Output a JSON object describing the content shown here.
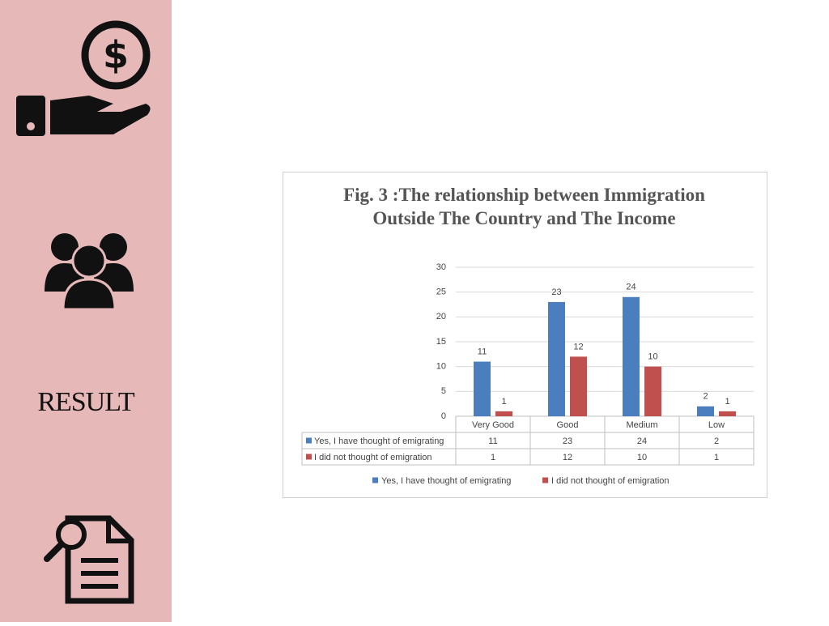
{
  "sidebar": {
    "label": "RESULT"
  },
  "chart_data": {
    "type": "bar",
    "title": "Fig. 3 :The relationship between Immigration Outside The Country and The Income",
    "categories": [
      "Very Good",
      "Good",
      "Medium",
      "Low"
    ],
    "series": [
      {
        "name": "Yes, I have thought of emigrating",
        "color": "#4a7ebf",
        "values": [
          11,
          23,
          24,
          2
        ]
      },
      {
        "name": "I did not thought of emigration",
        "color": "#c0504d",
        "values": [
          1,
          12,
          10,
          1
        ]
      }
    ],
    "ylim": [
      0,
      30
    ],
    "yticks": [
      0,
      5,
      10,
      15,
      20,
      25,
      30
    ],
    "grid": true,
    "legend": "bottom",
    "data_table": true
  }
}
